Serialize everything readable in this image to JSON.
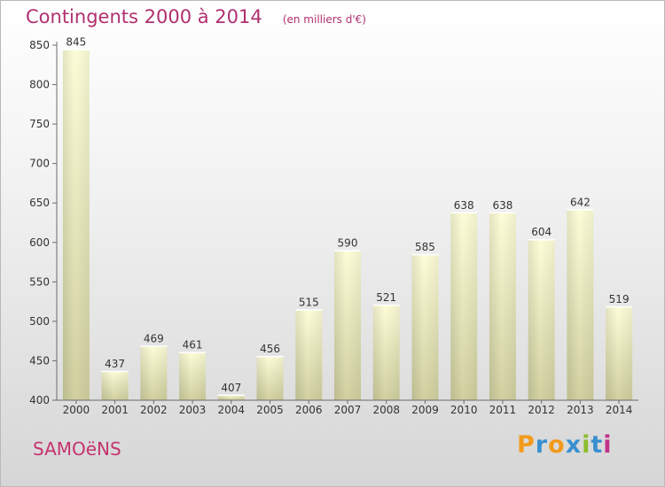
{
  "title": "Contingents 2000 à 2014",
  "unit": "(en milliers d'€)",
  "commune": "SAMOëNS",
  "brand": {
    "letters": [
      "P",
      "r",
      "o",
      "x",
      "i",
      "t",
      "i"
    ],
    "colors": [
      "#f29a1b",
      "#3a8fd0",
      "#f29a1b",
      "#3a8fd0",
      "#8bbd2e",
      "#3a8fd0",
      "#c0338a"
    ]
  },
  "colors": {
    "accent": "#b0306f",
    "bar_top": "#fdfdd8",
    "bar_bottom": "#d0d0a0"
  },
  "chart_data": {
    "type": "bar",
    "title": "Contingents 2000 à 2014",
    "subtitle": "(en milliers d'€)",
    "categories": [
      "2000",
      "2001",
      "2002",
      "2003",
      "2004",
      "2005",
      "2006",
      "2007",
      "2008",
      "2009",
      "2010",
      "2011",
      "2012",
      "2013",
      "2014"
    ],
    "values": [
      845,
      437,
      469,
      461,
      407,
      456,
      515,
      590,
      521,
      585,
      638,
      638,
      604,
      642,
      519
    ],
    "ylim": [
      400,
      850
    ],
    "yticks": [
      400,
      450,
      500,
      550,
      600,
      650,
      700,
      750,
      800,
      850
    ],
    "xlabel": "",
    "ylabel": "",
    "grid": false,
    "legend": "none"
  }
}
